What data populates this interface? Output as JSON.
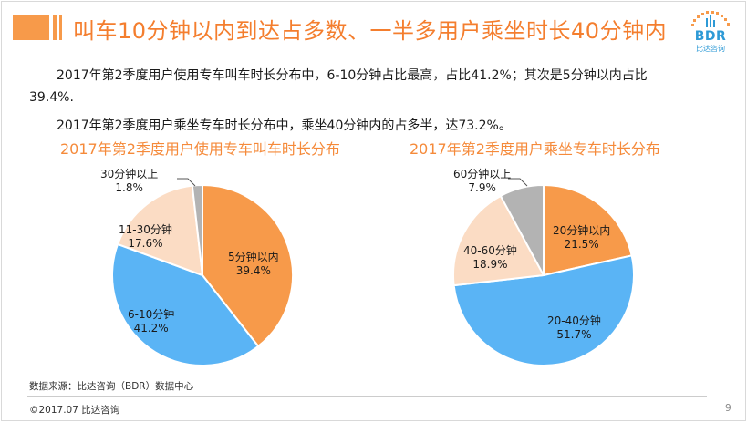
{
  "header": {
    "title": "叫车10分钟以内到达占多数、一半多用户乘坐时长40分钟内",
    "logo_text": "BDR",
    "logo_sub": "比达咨询"
  },
  "body": {
    "para1_line1": "2017年第2季度用户使用专车叫车时长分布中，6-10分钟占比最高，占比41.2%；其次是5分钟以内占比",
    "para1_line2": "39.4%.",
    "para2": "2017年第2季度用户乘坐专车时长分布中，乘坐40分钟内的占多半，达73.2%。"
  },
  "chart_data": [
    {
      "type": "pie",
      "title": "2017年第2季度用户使用专车叫车时长分布",
      "slices": [
        {
          "label": "5分钟以内",
          "value": 39.4,
          "display": "39.4%",
          "color": "#f79a4a"
        },
        {
          "label": "6-10分钟",
          "value": 41.2,
          "display": "41.2%",
          "color": "#5ab4f5"
        },
        {
          "label": "11-30分钟",
          "value": 17.6,
          "display": "17.6%",
          "color": "#fbdcc4"
        },
        {
          "label": "30分钟以上",
          "value": 1.8,
          "display": "1.8%",
          "color": "#b3b3b3"
        }
      ]
    },
    {
      "type": "pie",
      "title": "2017年第2季度用户乘坐专车时长分布",
      "slices": [
        {
          "label": "20分钟以内",
          "value": 21.5,
          "display": "21.5%",
          "color": "#f79a4a"
        },
        {
          "label": "20-40分钟",
          "value": 51.7,
          "display": "51.7%",
          "color": "#5ab4f5"
        },
        {
          "label": "40-60分钟",
          "value": 18.9,
          "display": "18.9%",
          "color": "#fbdcc4"
        },
        {
          "label": "60分钟以上",
          "value": 7.9,
          "display": "7.9%",
          "color": "#b3b3b3"
        }
      ]
    }
  ],
  "footer": {
    "source": "数据来源：比达咨询（BDR）数据中心",
    "copyright": "©2017.07   比达咨询",
    "page_number": "9"
  }
}
